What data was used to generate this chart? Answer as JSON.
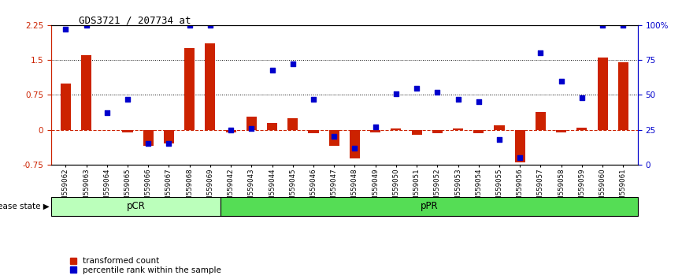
{
  "title": "GDS3721 / 207734_at",
  "samples": [
    "GSM559062",
    "GSM559063",
    "GSM559064",
    "GSM559065",
    "GSM559066",
    "GSM559067",
    "GSM559068",
    "GSM559069",
    "GSM559042",
    "GSM559043",
    "GSM559044",
    "GSM559045",
    "GSM559046",
    "GSM559047",
    "GSM559048",
    "GSM559049",
    "GSM559050",
    "GSM559051",
    "GSM559052",
    "GSM559053",
    "GSM559054",
    "GSM559055",
    "GSM559056",
    "GSM559057",
    "GSM559058",
    "GSM559059",
    "GSM559060",
    "GSM559061"
  ],
  "red_values": [
    1.0,
    1.6,
    0.0,
    -0.05,
    -0.35,
    -0.3,
    1.75,
    1.85,
    -0.05,
    0.28,
    0.15,
    0.25,
    -0.08,
    -0.35,
    -0.62,
    -0.05,
    0.02,
    -0.1,
    -0.08,
    0.02,
    -0.08,
    0.1,
    -0.7,
    0.38,
    -0.05,
    0.05,
    1.55,
    1.45
  ],
  "blue_values": [
    97,
    100,
    37,
    47,
    15,
    15,
    100,
    100,
    25,
    26,
    68,
    72,
    47,
    20,
    12,
    27,
    51,
    55,
    52,
    47,
    45,
    18,
    5,
    80,
    60,
    48,
    100,
    100
  ],
  "pcr_count": 8,
  "ppr_count": 20,
  "ylim_left": [
    -0.75,
    2.25
  ],
  "ylim_right": [
    0,
    100
  ],
  "yticks_left": [
    -0.75,
    0.0,
    0.75,
    1.5,
    2.25
  ],
  "ytick_labels_left": [
    "-0.75",
    "0",
    "0.75",
    "1.5",
    "2.25"
  ],
  "yticks_right": [
    0,
    25,
    50,
    75,
    100
  ],
  "ytick_labels_right": [
    "0",
    "25",
    "50",
    "75",
    "100%"
  ],
  "hlines": [
    0.75,
    1.5
  ],
  "bar_color": "#cc2200",
  "dot_color": "#0000cc",
  "pcr_color": "#bbffbb",
  "ppr_color": "#55dd55",
  "disease_state_label": "disease state",
  "pcr_label": "pCR",
  "ppr_label": "pPR",
  "legend_red": "transformed count",
  "legend_blue": "percentile rank within the sample",
  "bar_width": 0.5,
  "dot_size": 18
}
